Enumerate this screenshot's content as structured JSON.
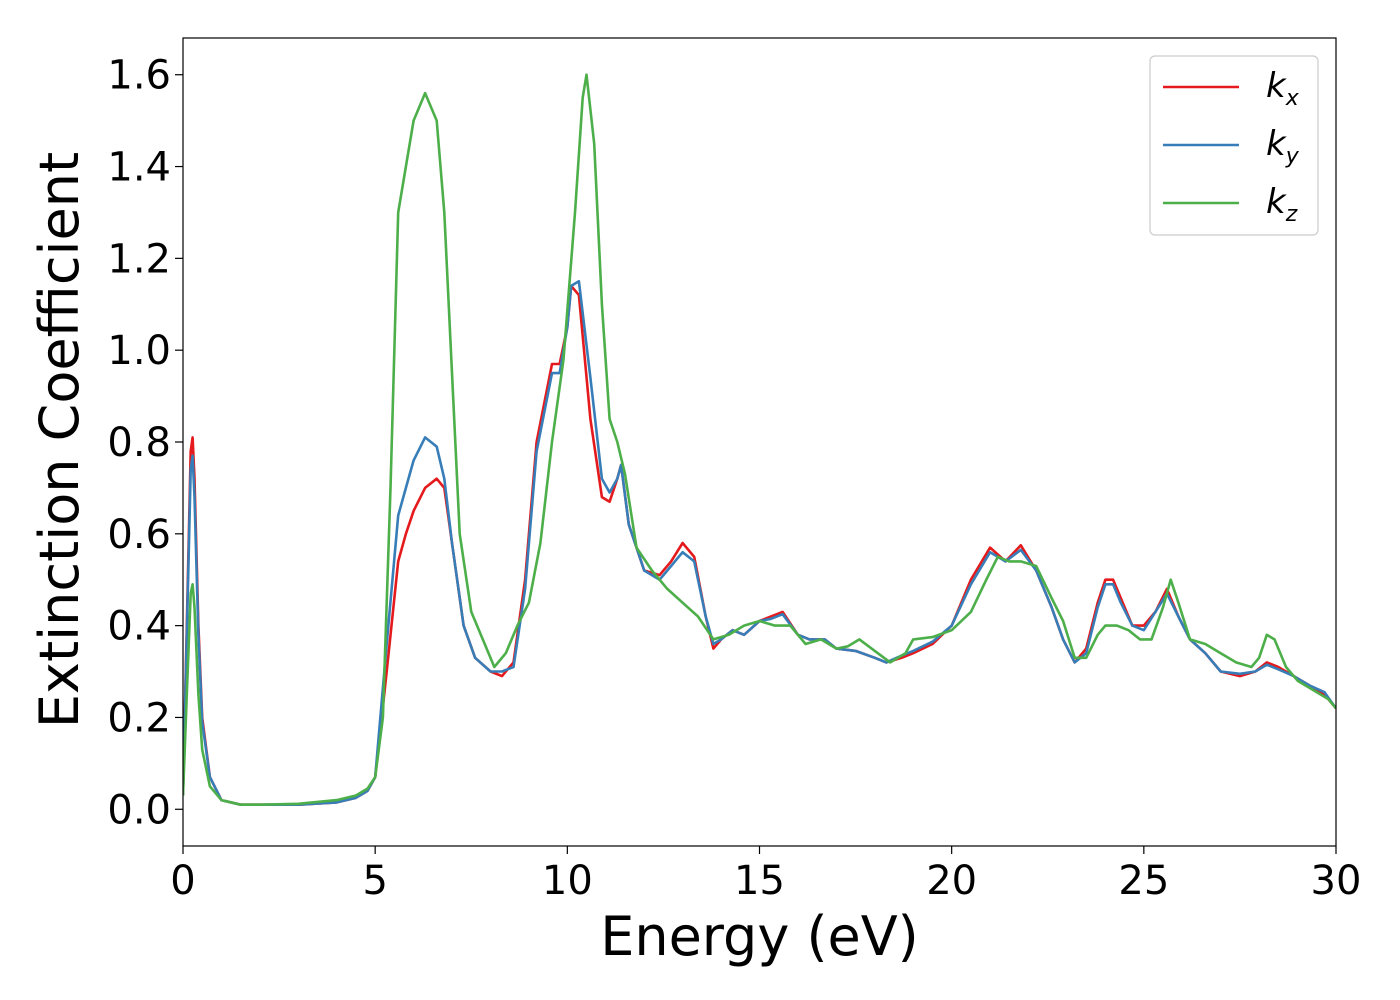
{
  "chart_data": {
    "type": "line",
    "xlabel": "Energy (eV)",
    "ylabel": "Extinction Coefficient",
    "xlim": [
      0,
      30
    ],
    "ylim": [
      -0.08,
      1.68
    ],
    "xticks": [
      "0",
      "5",
      "10",
      "15",
      "20",
      "25",
      "30"
    ],
    "yticks": [
      "0.0",
      "0.2",
      "0.4",
      "0.6",
      "0.8",
      "1.0",
      "1.2",
      "1.4",
      "1.6"
    ],
    "grid": false,
    "legend_position": "top-right",
    "series": [
      {
        "name": "k",
        "subscript": "x",
        "color": "#e41a1c",
        "x": [
          0,
          0.1,
          0.2,
          0.25,
          0.3,
          0.4,
          0.5,
          0.7,
          1.0,
          1.5,
          2,
          3,
          4,
          4.5,
          4.8,
          5.0,
          5.3,
          5.6,
          5.8,
          6.0,
          6.3,
          6.6,
          6.8,
          7.0,
          7.3,
          7.6,
          8.0,
          8.3,
          8.6,
          8.9,
          9.2,
          9.6,
          9.8,
          10.0,
          10.1,
          10.3,
          10.6,
          10.9,
          11.1,
          11.3,
          11.4,
          11.6,
          12.0,
          12.4,
          12.7,
          13.0,
          13.3,
          13.6,
          13.8,
          14.0,
          14.3,
          14.6,
          15.0,
          15.3,
          15.6,
          16.0,
          16.3,
          16.7,
          17.0,
          17.5,
          18.0,
          18.3,
          18.7,
          19.0,
          19.5,
          20.0,
          20.5,
          21.0,
          21.4,
          21.8,
          22.2,
          22.6,
          22.9,
          23.2,
          23.5,
          23.8,
          24.0,
          24.2,
          24.4,
          24.7,
          25.0,
          25.3,
          25.6,
          25.9,
          26.2,
          26.6,
          27.0,
          27.5,
          27.9,
          28.2,
          28.5,
          28.9,
          29.3,
          29.7,
          30.0
        ],
        "y": [
          0.03,
          0.4,
          0.78,
          0.81,
          0.72,
          0.4,
          0.2,
          0.07,
          0.02,
          0.01,
          0.01,
          0.01,
          0.015,
          0.025,
          0.04,
          0.07,
          0.3,
          0.54,
          0.6,
          0.65,
          0.7,
          0.72,
          0.7,
          0.58,
          0.4,
          0.33,
          0.3,
          0.29,
          0.32,
          0.5,
          0.8,
          0.97,
          0.97,
          1.05,
          1.14,
          1.12,
          0.85,
          0.68,
          0.67,
          0.72,
          0.75,
          0.62,
          0.52,
          0.51,
          0.54,
          0.58,
          0.55,
          0.42,
          0.35,
          0.37,
          0.39,
          0.38,
          0.41,
          0.42,
          0.43,
          0.38,
          0.37,
          0.37,
          0.35,
          0.345,
          0.33,
          0.32,
          0.33,
          0.34,
          0.36,
          0.4,
          0.5,
          0.57,
          0.54,
          0.575,
          0.52,
          0.44,
          0.37,
          0.32,
          0.35,
          0.45,
          0.5,
          0.5,
          0.46,
          0.4,
          0.4,
          0.43,
          0.48,
          0.42,
          0.37,
          0.34,
          0.3,
          0.29,
          0.3,
          0.32,
          0.31,
          0.29,
          0.27,
          0.25,
          0.22
        ]
      },
      {
        "name": "k",
        "subscript": "y",
        "color": "#377eb8",
        "x": [
          0,
          0.1,
          0.2,
          0.25,
          0.3,
          0.4,
          0.5,
          0.7,
          1.0,
          1.5,
          2,
          3,
          4,
          4.5,
          4.8,
          5.0,
          5.3,
          5.6,
          5.8,
          6.0,
          6.3,
          6.6,
          6.8,
          7.0,
          7.3,
          7.6,
          8.0,
          8.3,
          8.6,
          8.9,
          9.2,
          9.6,
          9.8,
          10.0,
          10.1,
          10.3,
          10.6,
          10.9,
          11.1,
          11.3,
          11.4,
          11.6,
          12.0,
          12.4,
          12.7,
          13.0,
          13.3,
          13.6,
          13.8,
          14.0,
          14.3,
          14.6,
          15.0,
          15.3,
          15.6,
          16.0,
          16.3,
          16.7,
          17.0,
          17.5,
          18.0,
          18.3,
          18.7,
          19.0,
          19.5,
          20.0,
          20.5,
          21.0,
          21.4,
          21.8,
          22.2,
          22.6,
          22.9,
          23.2,
          23.5,
          23.8,
          24.0,
          24.2,
          24.4,
          24.7,
          25.0,
          25.3,
          25.6,
          25.9,
          26.2,
          26.6,
          27.0,
          27.5,
          27.9,
          28.2,
          28.5,
          28.9,
          29.3,
          29.7,
          30.0
        ],
        "y": [
          0.03,
          0.38,
          0.74,
          0.77,
          0.68,
          0.38,
          0.19,
          0.07,
          0.02,
          0.01,
          0.01,
          0.01,
          0.015,
          0.025,
          0.04,
          0.07,
          0.36,
          0.64,
          0.7,
          0.76,
          0.81,
          0.79,
          0.72,
          0.58,
          0.4,
          0.33,
          0.3,
          0.3,
          0.31,
          0.48,
          0.78,
          0.95,
          0.95,
          1.05,
          1.14,
          1.15,
          0.94,
          0.72,
          0.69,
          0.72,
          0.75,
          0.62,
          0.52,
          0.5,
          0.53,
          0.56,
          0.54,
          0.42,
          0.36,
          0.37,
          0.39,
          0.38,
          0.41,
          0.415,
          0.425,
          0.38,
          0.37,
          0.37,
          0.35,
          0.345,
          0.33,
          0.32,
          0.335,
          0.345,
          0.365,
          0.4,
          0.49,
          0.56,
          0.54,
          0.565,
          0.52,
          0.44,
          0.37,
          0.32,
          0.34,
          0.44,
          0.49,
          0.49,
          0.45,
          0.4,
          0.39,
          0.43,
          0.47,
          0.42,
          0.37,
          0.34,
          0.3,
          0.295,
          0.3,
          0.315,
          0.305,
          0.29,
          0.27,
          0.255,
          0.22
        ]
      },
      {
        "name": "k",
        "subscript": "z",
        "color": "#4daf4a",
        "x": [
          0,
          0.1,
          0.2,
          0.25,
          0.3,
          0.4,
          0.5,
          0.7,
          1.0,
          1.5,
          2,
          3,
          4,
          4.5,
          4.8,
          5.0,
          5.2,
          5.4,
          5.6,
          5.8,
          6.0,
          6.3,
          6.6,
          6.8,
          7.0,
          7.2,
          7.5,
          7.8,
          8.1,
          8.4,
          8.7,
          9.0,
          9.3,
          9.6,
          9.9,
          10.2,
          10.4,
          10.5,
          10.7,
          10.9,
          11.1,
          11.3,
          11.5,
          11.8,
          12.2,
          12.6,
          13.0,
          13.4,
          13.8,
          14.2,
          14.6,
          15.0,
          15.4,
          15.8,
          16.2,
          16.6,
          17.0,
          17.3,
          17.6,
          18.0,
          18.4,
          18.8,
          19.0,
          19.5,
          20.0,
          20.5,
          20.9,
          21.2,
          21.5,
          21.8,
          22.2,
          22.6,
          22.9,
          23.2,
          23.5,
          23.8,
          24.0,
          24.3,
          24.6,
          24.9,
          25.2,
          25.5,
          25.7,
          25.9,
          26.2,
          26.6,
          27.0,
          27.4,
          27.8,
          28.0,
          28.2,
          28.4,
          28.7,
          29.0,
          29.4,
          29.8,
          30.0
        ],
        "y": [
          0.03,
          0.25,
          0.47,
          0.49,
          0.44,
          0.25,
          0.13,
          0.05,
          0.02,
          0.01,
          0.01,
          0.012,
          0.02,
          0.03,
          0.045,
          0.07,
          0.2,
          0.7,
          1.3,
          1.4,
          1.5,
          1.56,
          1.5,
          1.3,
          0.95,
          0.6,
          0.43,
          0.37,
          0.31,
          0.34,
          0.4,
          0.45,
          0.58,
          0.8,
          0.98,
          1.3,
          1.55,
          1.6,
          1.45,
          1.1,
          0.85,
          0.8,
          0.73,
          0.57,
          0.52,
          0.48,
          0.45,
          0.42,
          0.37,
          0.38,
          0.4,
          0.41,
          0.4,
          0.4,
          0.36,
          0.37,
          0.35,
          0.355,
          0.37,
          0.345,
          0.32,
          0.34,
          0.37,
          0.375,
          0.39,
          0.43,
          0.5,
          0.55,
          0.54,
          0.54,
          0.53,
          0.46,
          0.41,
          0.33,
          0.33,
          0.38,
          0.4,
          0.4,
          0.39,
          0.37,
          0.37,
          0.44,
          0.5,
          0.45,
          0.37,
          0.36,
          0.34,
          0.32,
          0.31,
          0.33,
          0.38,
          0.37,
          0.31,
          0.28,
          0.26,
          0.24,
          0.22
        ]
      }
    ]
  }
}
